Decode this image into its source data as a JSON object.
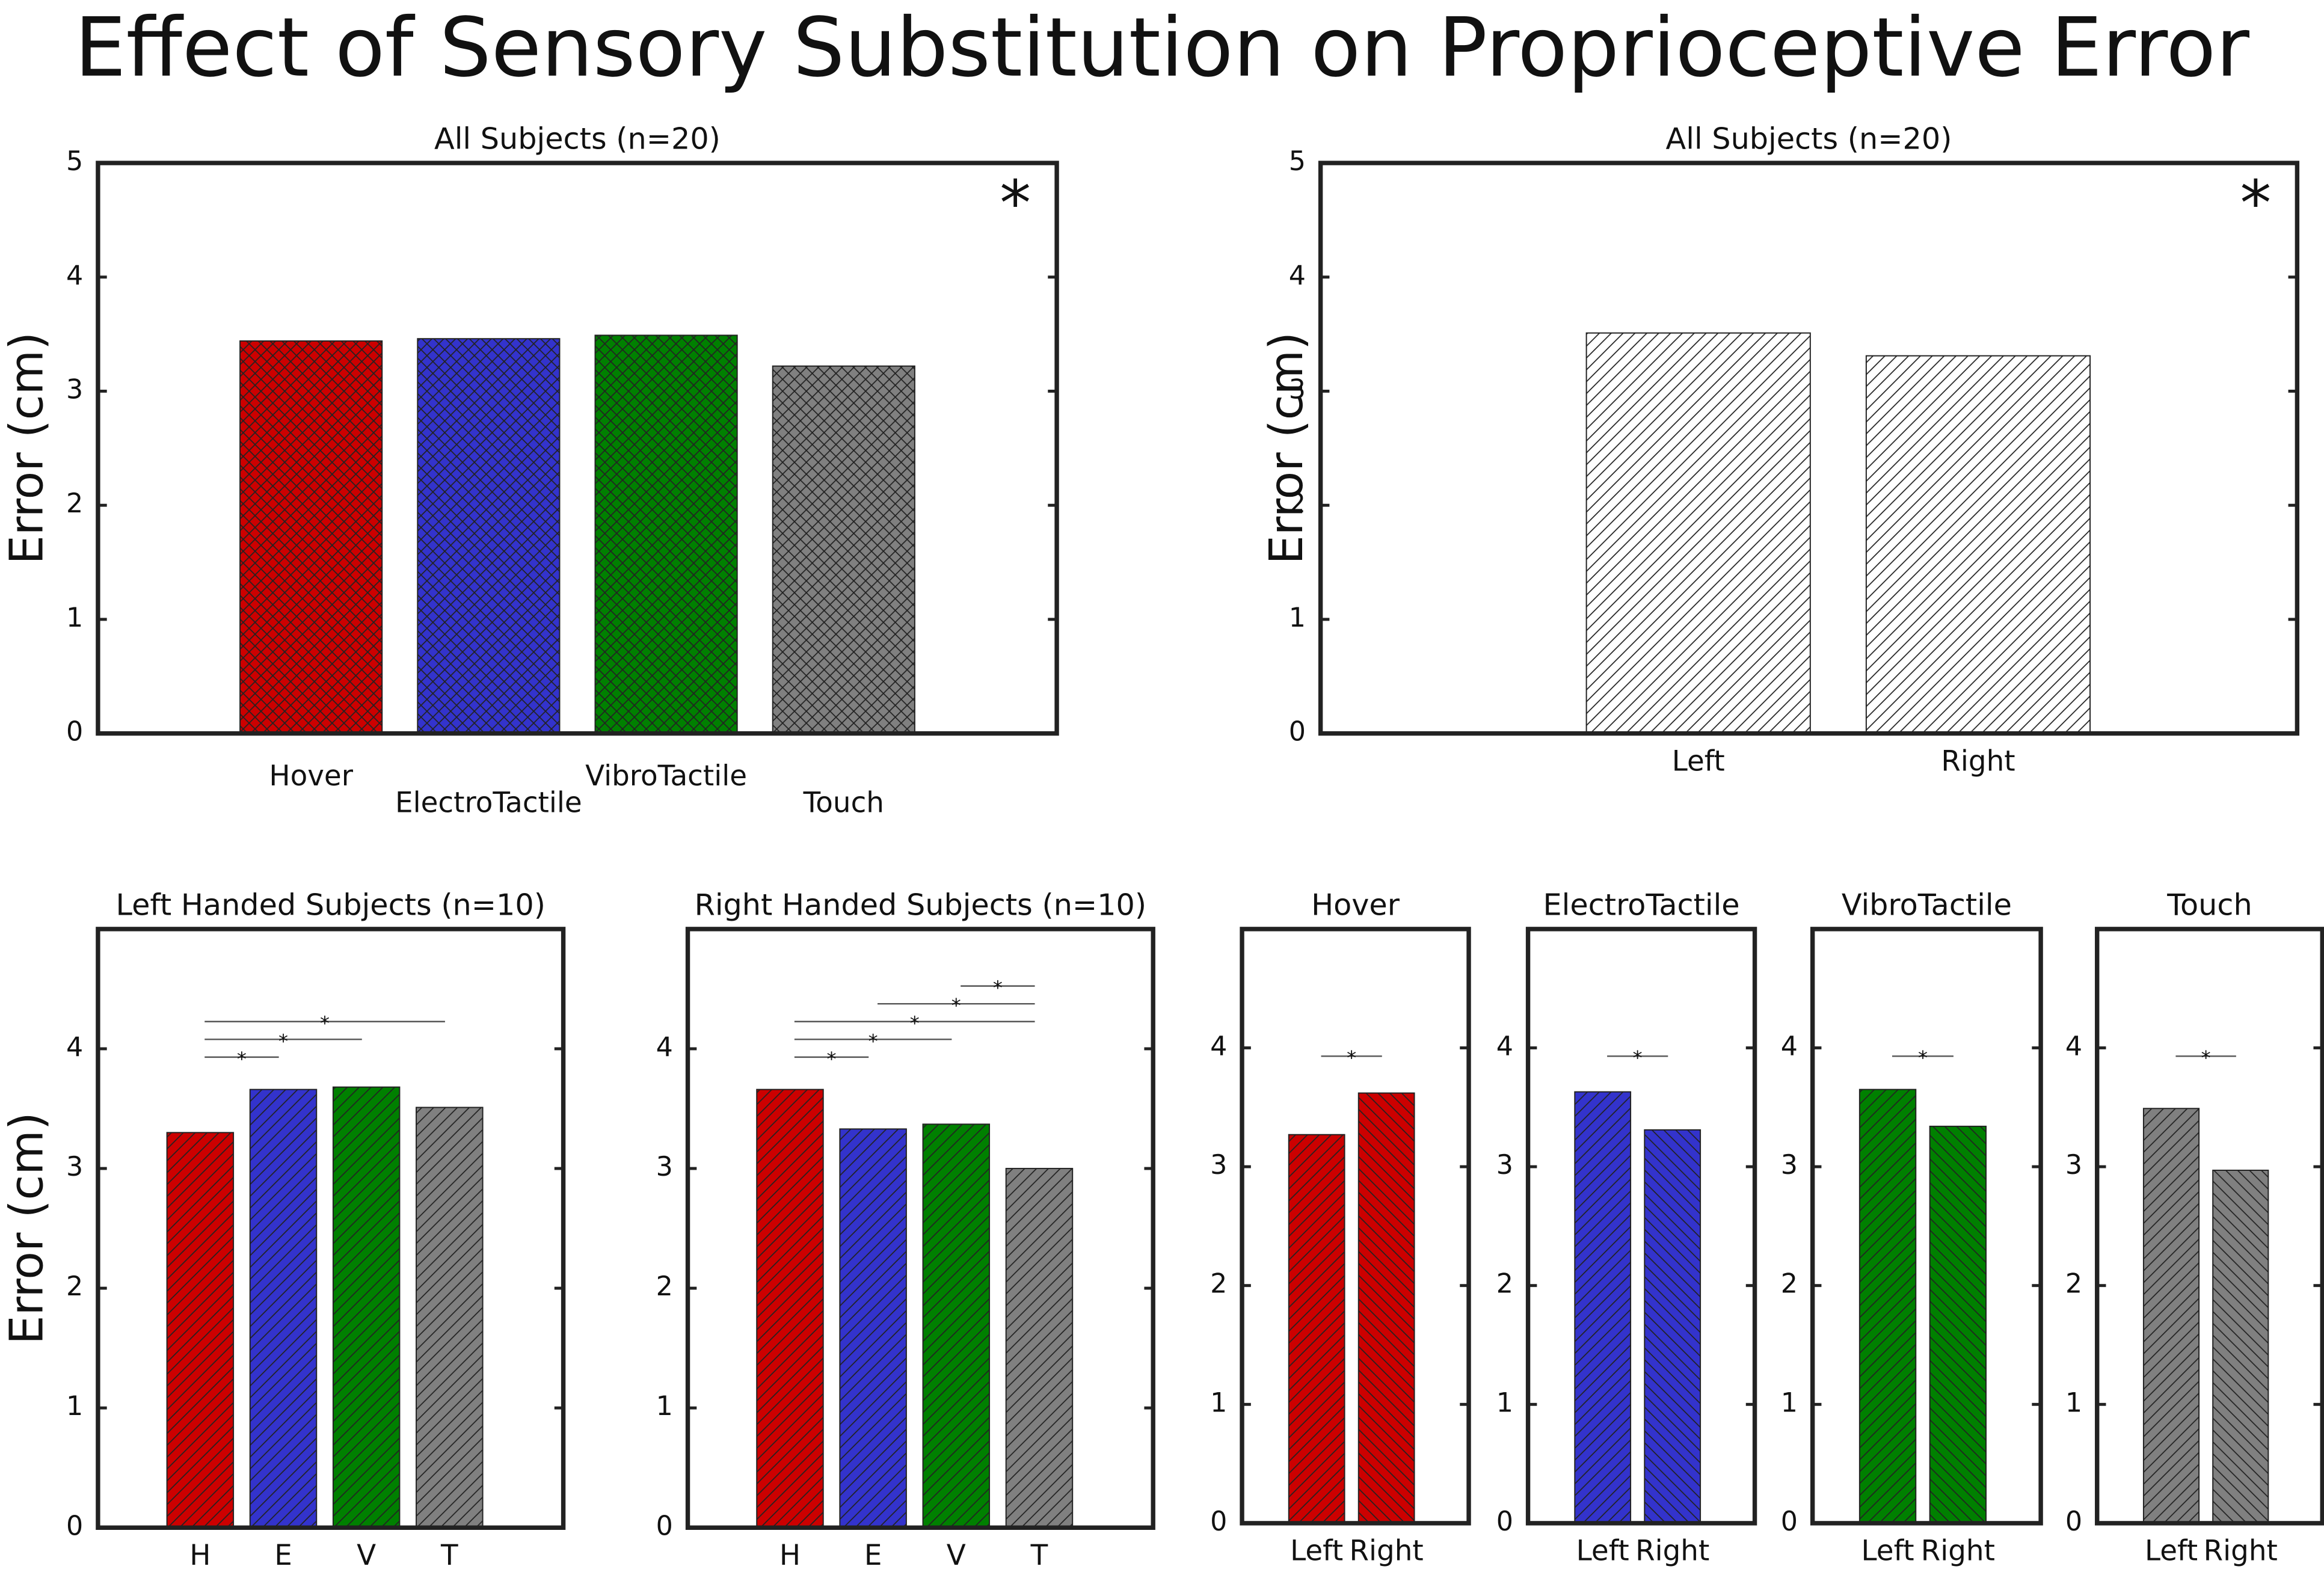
{
  "title": "Effect of Sensory Substitution on Proprioceptive Error",
  "chart_data": [
    {
      "type": "bar",
      "title": "All Subjects (n=20)",
      "ylabel": "Error (cm)",
      "categories": [
        "Hover",
        "ElectroTactile",
        "VibroTactile",
        "Touch"
      ],
      "values": [
        3.44,
        3.46,
        3.49,
        3.22
      ],
      "colors": [
        "#cc0000",
        "#3333cc",
        "#008000",
        "#808080"
      ],
      "hatch": "cross",
      "ylim": [
        0,
        5
      ],
      "yticks": [
        0,
        1,
        2,
        3,
        4,
        5
      ],
      "annotation": "*"
    },
    {
      "type": "bar",
      "title": "All Subjects (n=20)",
      "ylabel": "Error (cm)",
      "categories": [
        "Left",
        "Right"
      ],
      "values": [
        3.51,
        3.31
      ],
      "colors": [
        "#ffffff",
        "#ffffff"
      ],
      "hatch": "diagonal",
      "ylim": [
        0,
        5
      ],
      "yticks": [
        0,
        1,
        2,
        3,
        4,
        5
      ],
      "annotation": "*"
    },
    {
      "type": "bar",
      "title": "Left Handed Subjects (n=10)",
      "ylabel": "Error (cm)",
      "categories": [
        "H",
        "E",
        "V",
        "T"
      ],
      "values": [
        3.3,
        3.66,
        3.68,
        3.51
      ],
      "colors": [
        "#cc0000",
        "#3333cc",
        "#008000",
        "#808080"
      ],
      "hatch": "diagonal",
      "ylim": [
        0,
        5
      ],
      "yticks": [
        0,
        1,
        2,
        3,
        4
      ],
      "significance": [
        {
          "pair": [
            0,
            1
          ],
          "label": "*"
        },
        {
          "pair": [
            0,
            2
          ],
          "label": "*"
        },
        {
          "pair": [
            0,
            3
          ],
          "label": "*"
        }
      ]
    },
    {
      "type": "bar",
      "title": "Right Handed Subjects (n=10)",
      "categories": [
        "H",
        "E",
        "V",
        "T"
      ],
      "values": [
        3.66,
        3.33,
        3.37,
        3.0
      ],
      "colors": [
        "#cc0000",
        "#3333cc",
        "#008000",
        "#808080"
      ],
      "hatch": "diagonal",
      "ylim": [
        0,
        5
      ],
      "yticks": [
        0,
        1,
        2,
        3,
        4
      ],
      "significance": [
        {
          "pair": [
            0,
            1
          ],
          "label": "*"
        },
        {
          "pair": [
            0,
            2
          ],
          "label": "*"
        },
        {
          "pair": [
            0,
            3
          ],
          "label": "*"
        },
        {
          "pair": [
            1,
            3
          ],
          "label": "*"
        },
        {
          "pair": [
            2,
            3
          ],
          "label": "*"
        }
      ]
    },
    {
      "type": "bar",
      "title": "Hover",
      "categories": [
        "Left",
        "Right"
      ],
      "values": [
        3.27,
        3.62
      ],
      "colors": [
        "#cc0000",
        "#cc0000"
      ],
      "hatch": "diagonal",
      "ylim": [
        0,
        5
      ],
      "yticks": [
        0,
        1,
        2,
        3,
        4
      ],
      "significance": [
        {
          "pair": [
            0,
            1
          ],
          "label": "*"
        }
      ]
    },
    {
      "type": "bar",
      "title": "ElectroTactile",
      "categories": [
        "Left",
        "Right"
      ],
      "values": [
        3.63,
        3.31
      ],
      "colors": [
        "#3333cc",
        "#3333cc"
      ],
      "hatch": "diagonal",
      "ylim": [
        0,
        5
      ],
      "yticks": [
        0,
        1,
        2,
        3,
        4
      ],
      "significance": [
        {
          "pair": [
            0,
            1
          ],
          "label": "*"
        }
      ]
    },
    {
      "type": "bar",
      "title": "VibroTactile",
      "categories": [
        "Left",
        "Right"
      ],
      "values": [
        3.65,
        3.34
      ],
      "colors": [
        "#008000",
        "#008000"
      ],
      "hatch": "diagonal",
      "ylim": [
        0,
        5
      ],
      "yticks": [
        0,
        1,
        2,
        3,
        4
      ],
      "significance": [
        {
          "pair": [
            0,
            1
          ],
          "label": "*"
        }
      ]
    },
    {
      "type": "bar",
      "title": "Touch",
      "categories": [
        "Left",
        "Right"
      ],
      "values": [
        3.49,
        2.97
      ],
      "colors": [
        "#808080",
        "#808080"
      ],
      "hatch": "diagonal",
      "ylim": [
        0,
        5
      ],
      "yticks": [
        0,
        1,
        2,
        3,
        4
      ],
      "significance": [
        {
          "pair": [
            0,
            1
          ],
          "label": "*"
        }
      ]
    }
  ]
}
